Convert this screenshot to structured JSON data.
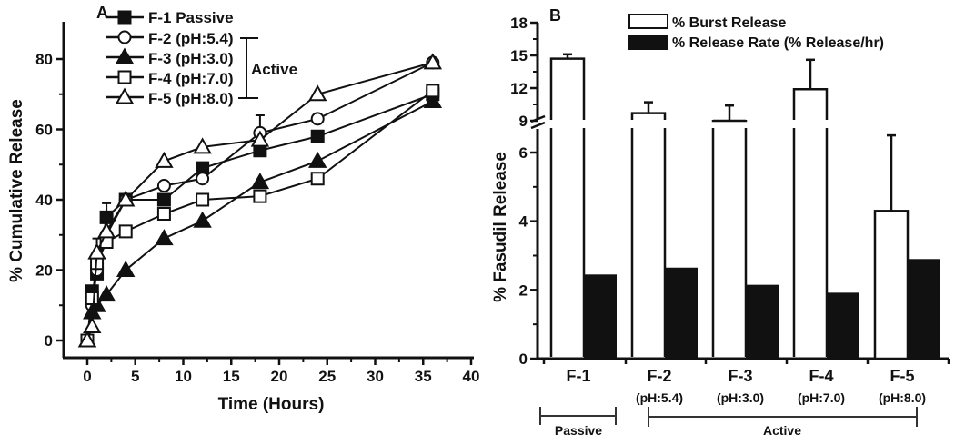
{
  "chart_data": [
    {
      "panel": "A",
      "type": "line",
      "title": "",
      "panel_label": "A",
      "xlabel": "Time (Hours)",
      "ylabel": "% Cumulative Release",
      "xlim": [
        -3,
        40
      ],
      "ylim": [
        -5,
        90
      ],
      "xticks": [
        0,
        5,
        10,
        15,
        20,
        25,
        30,
        35,
        40
      ],
      "yticks": [
        0,
        20,
        40,
        60,
        80
      ],
      "grid": false,
      "legend_position": "upper-left inside",
      "legend_bracket_label": "Active",
      "series": [
        {
          "name": "F-1  Passive",
          "marker": "filled-square",
          "x": [
            0,
            0.5,
            1,
            2,
            4,
            8,
            12,
            18,
            24,
            36
          ],
          "y": [
            0,
            14,
            19,
            35,
            40,
            40,
            49,
            54,
            58,
            70
          ],
          "err_at": {
            "2": 4
          }
        },
        {
          "name": "F-2 (pH:5.4)",
          "marker": "open-circle",
          "x": [
            0,
            0.5,
            1,
            2,
            4,
            8,
            12,
            18,
            24,
            36
          ],
          "y": [
            0,
            10,
            20,
            30,
            40,
            44,
            46,
            59,
            63,
            79
          ],
          "err_at": {
            "18": 5
          }
        },
        {
          "name": "F-3 (pH:3.0)",
          "marker": "filled-triangle",
          "x": [
            0,
            0.5,
            1,
            2,
            4,
            8,
            12,
            18,
            24,
            36
          ],
          "y": [
            0,
            8,
            10,
            13,
            20,
            29,
            34,
            45,
            51,
            68
          ]
        },
        {
          "name": "F-4 (pH:7.0)",
          "marker": "open-square",
          "x": [
            0,
            0.5,
            1,
            2,
            4,
            8,
            12,
            18,
            24,
            36
          ],
          "y": [
            0,
            12,
            22,
            28,
            31,
            36,
            40,
            41,
            46,
            71
          ]
        },
        {
          "name": "F-5 (pH:8.0)",
          "marker": "open-triangle",
          "x": [
            0,
            0.5,
            1,
            2,
            4,
            8,
            12,
            18,
            24,
            36
          ],
          "y": [
            0,
            4,
            25,
            31,
            40,
            51,
            55,
            57,
            70,
            79
          ],
          "err_at": {
            "1": 4
          }
        }
      ]
    },
    {
      "panel": "B",
      "type": "bar",
      "panel_label": "B",
      "title": "",
      "xlabel": "",
      "ylabel": "% Fasudil Release",
      "ylim": [
        0,
        18
      ],
      "y_axis_break": [
        6.8,
        9
      ],
      "yticks": [
        0,
        2,
        4,
        6,
        9,
        12,
        15,
        18
      ],
      "categories": [
        "F-1",
        "F-2",
        "F-3",
        "F-4",
        "F-5"
      ],
      "category_sublabels": [
        "",
        "(pH:5.4)",
        "(pH:3.0)",
        "(pH:7.0)",
        "(pH:8.0)"
      ],
      "groups": [
        {
          "label": "Passive",
          "members": [
            "F-1"
          ]
        },
        {
          "label": "Active",
          "members": [
            "F-2",
            "F-3",
            "F-4",
            "F-5"
          ]
        }
      ],
      "legend_position": "top-right",
      "series": [
        {
          "name": "% Burst Release",
          "fill": "#ffffff",
          "values": [
            14.7,
            9.7,
            9.0,
            11.9,
            4.3
          ],
          "errors": [
            0.4,
            1.0,
            1.4,
            2.7,
            2.2
          ]
        },
        {
          "name": "% Release Rate (% Release/hr)",
          "fill": "#111111",
          "values": [
            2.45,
            2.65,
            2.15,
            1.92,
            2.9
          ],
          "errors": [
            0,
            0,
            0,
            0,
            0
          ]
        }
      ]
    }
  ],
  "panelA": {
    "label": "A",
    "xlabel": "Time (Hours)",
    "ylabel": "% Cumulative Release",
    "xtick_labels": [
      "0",
      "5",
      "10",
      "15",
      "20",
      "25",
      "30",
      "35",
      "40"
    ],
    "ytick_labels": [
      "0",
      "20",
      "40",
      "60",
      "80"
    ],
    "legend": [
      "F-1  Passive",
      "F-2 (pH:5.4)",
      "F-3 (pH:3.0)",
      "F-4 (pH:7.0)",
      "F-5 (pH:8.0)"
    ],
    "legend_bracket": "Active"
  },
  "panelB": {
    "label": "B",
    "ylabel": "% Fasudil Release",
    "ytick_labels": [
      "0",
      "2",
      "4",
      "6",
      "9",
      "12",
      "15",
      "18"
    ],
    "legend": [
      "% Burst Release",
      "% Release Rate (% Release/hr)"
    ],
    "categories": [
      "F-1",
      "F-2",
      "F-3",
      "F-4",
      "F-5"
    ],
    "sublabels": [
      "(pH:5.4)",
      "(pH:3.0)",
      "(pH:7.0)",
      "(pH:8.0)"
    ],
    "group_passive": "Passive",
    "group_active": "Active"
  }
}
